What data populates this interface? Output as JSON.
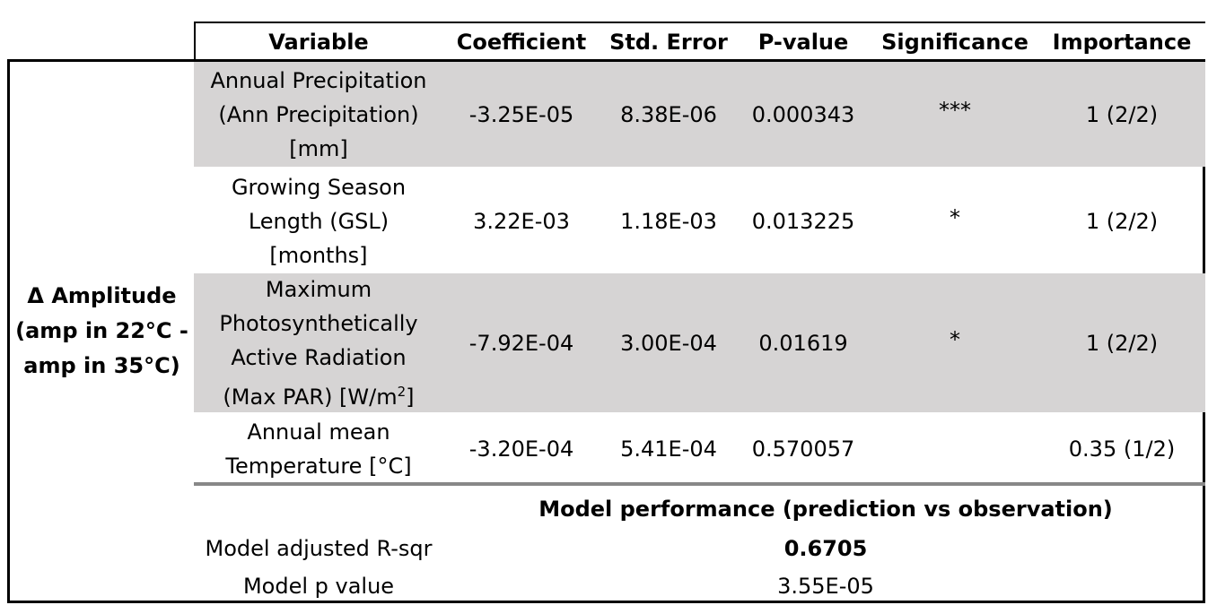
{
  "table": {
    "headers": [
      "Variable",
      "Coefficient",
      "Std. Error",
      "P-value",
      "Significance",
      "Importance"
    ],
    "row_group_label": [
      "Δ Amplitude",
      "(amp in 22°C -",
      "amp in 35°C)"
    ],
    "rows": [
      {
        "variable_lines": [
          "Annual Precipitation",
          "(Ann Precipitation)",
          "[mm]"
        ],
        "coefficient": "-3.25E-05",
        "std_error": "8.38E-06",
        "p_value": "0.000343",
        "significance": "***",
        "importance": "1 (2/2)"
      },
      {
        "variable_lines": [
          "Growing Season",
          "Length (GSL)",
          "[months]"
        ],
        "coefficient": "3.22E-03",
        "std_error": "1.18E-03",
        "p_value": "0.013225",
        "significance": "*",
        "importance": "1 (2/2)"
      },
      {
        "variable_lines": [
          "Maximum",
          "Photosynthetically",
          "Active Radiation",
          "(Max PAR) [W/m",
          "2",
          "]"
        ],
        "coefficient": "-7.92E-04",
        "std_error": "3.00E-04",
        "p_value": "0.01619",
        "significance": "*",
        "importance": "1 (2/2)"
      },
      {
        "variable_lines": [
          "Annual mean",
          "Temperature [°C]"
        ],
        "coefficient": "-3.20E-04",
        "std_error": "5.41E-04",
        "p_value": "0.570057",
        "significance": "",
        "importance": "0.35 (1/2)"
      }
    ]
  },
  "performance": {
    "title": "Model performance (prediction vs observation)",
    "r_sqr_label": "Model adjusted R-sqr",
    "r_sqr_value": "0.6705",
    "p_label": "Model p value",
    "p_value": "3.55E-05"
  },
  "colors": {
    "shaded_row": "#d6d4d4",
    "rule_dark": "#000000",
    "rule_gray": "#888888"
  }
}
